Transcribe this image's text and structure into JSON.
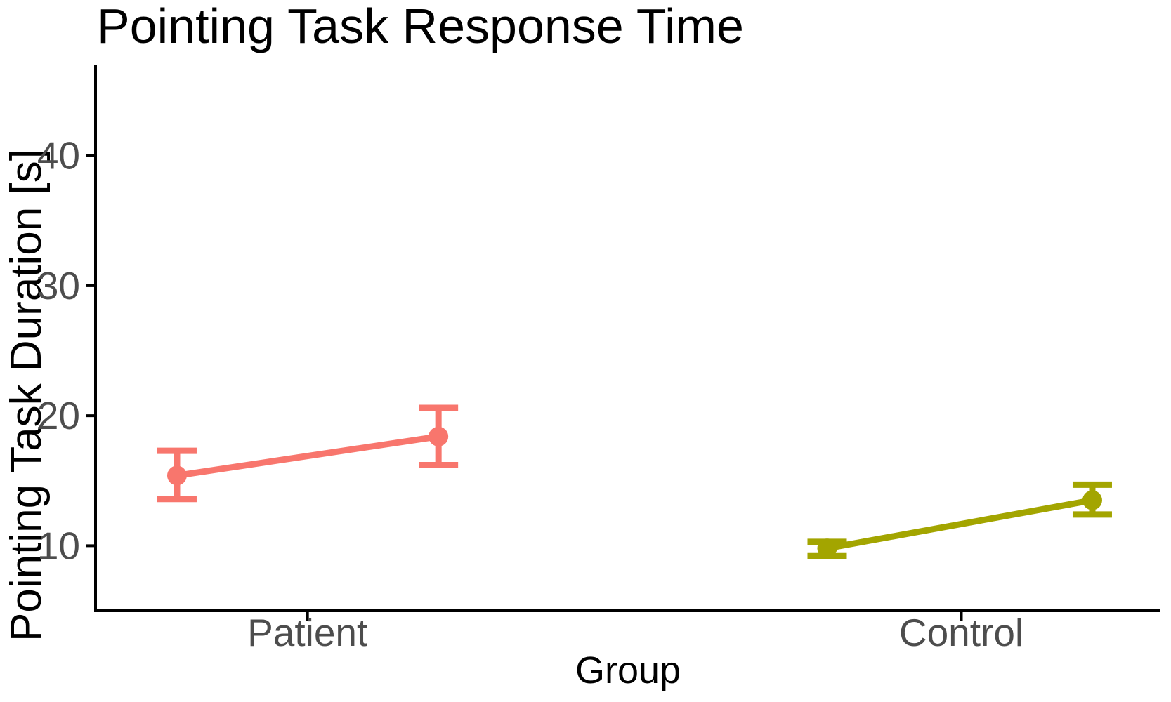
{
  "chart_data": {
    "type": "line",
    "subtype": "pointrange-dodged",
    "title": "Pointing Task Response Time",
    "xlabel": "Group",
    "ylabel": "Pointing Task Duration [s]",
    "ylim": [
      5,
      47
    ],
    "yticks": [
      10,
      20,
      30,
      40
    ],
    "grid": false,
    "legend_position": "none",
    "axis_color": "#000000",
    "tick_label_color": "#4d4d4d",
    "categories": [
      {
        "label": "Patient",
        "x_frac": 0.199
      },
      {
        "label": "Control",
        "x_frac": 0.813
      }
    ],
    "series": [
      {
        "name": "Patient",
        "color": "#F8766D",
        "points": [
          {
            "x_frac": 0.0765,
            "y": 15.4,
            "lo": 13.6,
            "hi": 17.3
          },
          {
            "x_frac": 0.322,
            "y": 18.4,
            "lo": 16.2,
            "hi": 20.6
          }
        ]
      },
      {
        "name": "Control",
        "color": "#A3A500",
        "points": [
          {
            "x_frac": 0.687,
            "y": 9.8,
            "lo": 9.2,
            "hi": 10.3
          },
          {
            "x_frac": 0.936,
            "y": 13.5,
            "lo": 12.4,
            "hi": 14.7
          }
        ]
      }
    ]
  }
}
